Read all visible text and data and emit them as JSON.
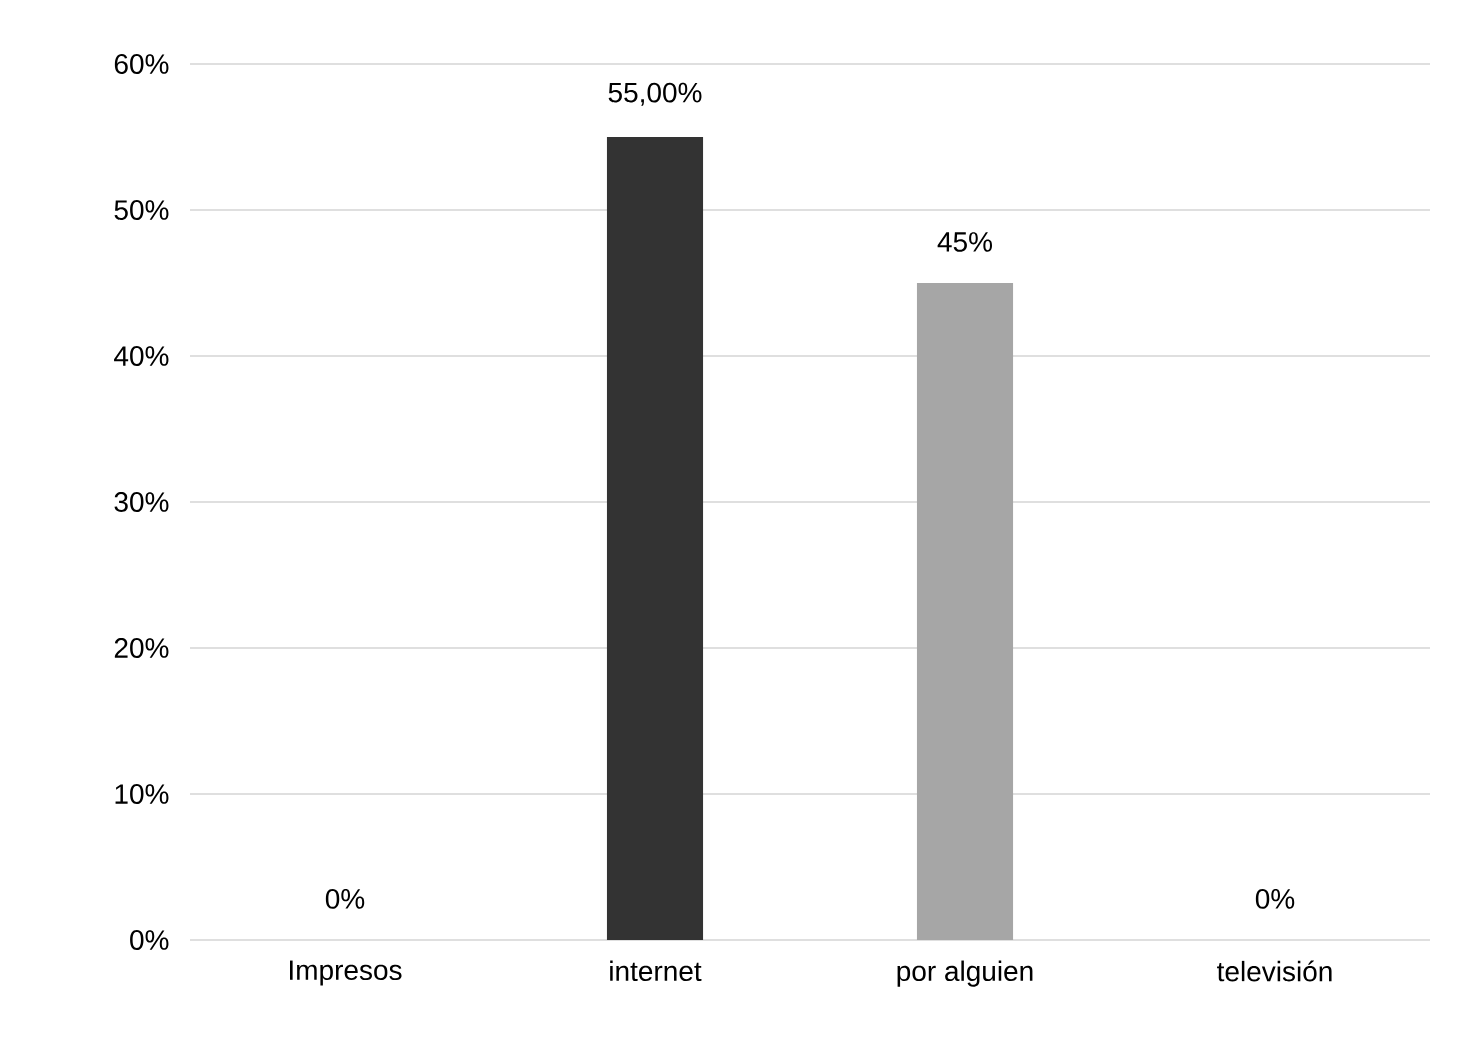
{
  "chart_data": {
    "type": "bar",
    "categories": [
      "Impresos",
      "internet",
      "por alguien",
      "televisión"
    ],
    "values": [
      0,
      55,
      45,
      0
    ],
    "colors": [
      "#333333",
      "#333333",
      "#a6a6a6",
      "#a6a6a6"
    ],
    "value_labels": [
      "0%",
      "55,00%",
      "45%",
      "0%"
    ],
    "ylim": [
      0,
      60
    ],
    "yticks": [
      {
        "value": 0,
        "label": "0%"
      },
      {
        "value": 10,
        "label": "10%"
      },
      {
        "value": 20,
        "label": "20%"
      },
      {
        "value": 30,
        "label": "30%"
      },
      {
        "value": 40,
        "label": "40%"
      },
      {
        "value": 50,
        "label": "50%"
      },
      {
        "value": 60,
        "label": "60%"
      }
    ],
    "grid": "y"
  }
}
